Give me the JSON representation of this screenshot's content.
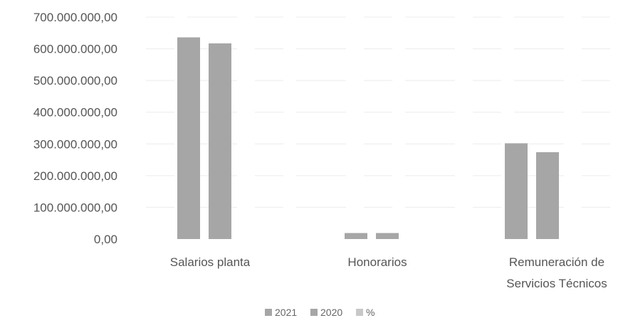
{
  "chart_data": {
    "type": "bar",
    "categories": [
      [
        "Salarios planta"
      ],
      [
        "Honorarios"
      ],
      [
        "Remuneración de",
        "Servicios Técnicos"
      ]
    ],
    "series": [
      {
        "name": "2021",
        "values": [
          636000000,
          19000000,
          302000000
        ],
        "color": "#a6a6a6"
      },
      {
        "name": "2020",
        "values": [
          617000000,
          19000000,
          274000000
        ],
        "color": "#a6a6a6"
      },
      {
        "name": "%",
        "values": [
          null,
          null,
          null
        ],
        "color": "#c8c8c8"
      }
    ],
    "ylim": [
      0,
      700000000
    ],
    "yticks": [
      "0,00",
      "100.000.000,00",
      "200.000.000,00",
      "300.000.000,00",
      "400.000.000,00",
      "500.000.000,00",
      "600.000.000,00",
      "700.000.000,00"
    ],
    "grid": true,
    "legend_position": "bottom"
  }
}
